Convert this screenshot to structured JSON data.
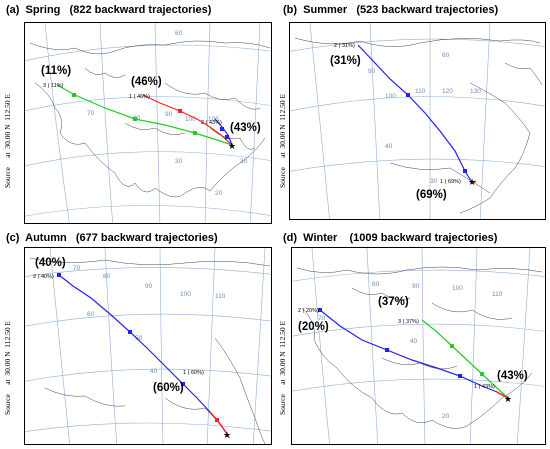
{
  "panels": [
    {
      "id": "a",
      "title": "(a)  Spring   (822 backward trajectories)",
      "side_label": "Source     at  30.00 N  112.50 E",
      "grid_labels": [
        "60",
        "70",
        "80",
        "90",
        "100",
        "105",
        "30",
        "30",
        "20"
      ],
      "trajectories": [
        {
          "label": "3 ( 11%)",
          "percent": "(11%)",
          "color": "#22cc22"
        },
        {
          "label": "1 ( 46%)",
          "percent": "(46%)",
          "color": "#ff2222"
        },
        {
          "label": "2 ( 43%)",
          "percent": "(43%)",
          "color": "#2222ee"
        }
      ]
    },
    {
      "id": "b",
      "title": "(b)  Summer   (523 backward trajectories)",
      "side_label": "Source     at  30.00 N  112.50 E",
      "grid_labels": [
        "60",
        "90",
        "100",
        "110",
        "120",
        "130",
        "40",
        "30"
      ],
      "trajectories": [
        {
          "label": "2 ( 31%)",
          "percent": "(31%)",
          "color": "#2222ee"
        },
        {
          "label": "1 ( 69%)",
          "percent": "(69%)",
          "color": "#ff2222"
        }
      ]
    },
    {
      "id": "c",
      "title": "(c)  Autumn   (677 backward trajectories)",
      "side_label": "Source     at  30.00 N  112.50 E",
      "grid_labels": [
        "70",
        "80",
        "90",
        "100",
        "110",
        "60",
        "50",
        "40"
      ],
      "trajectories": [
        {
          "label": "2 ( 40%)",
          "percent": "(40%)",
          "color": "#2222ee"
        },
        {
          "label": "1 ( 60%)",
          "percent": "(60%)",
          "color": "#ff2222"
        }
      ]
    },
    {
      "id": "d",
      "title": "(d)  Winter    (1009 backward trajectories)",
      "side_label": "Source     at  30.00 N  112.50 E",
      "grid_labels": [
        "70",
        "80",
        "90",
        "100",
        "110",
        "40",
        "20"
      ],
      "trajectories": [
        {
          "label": "2 ( 20%)",
          "percent": "(20%)",
          "color": "#2222ee"
        },
        {
          "label": "3 ( 37%)",
          "percent": "(37%)",
          "color": "#22cc22"
        },
        {
          "label": "1 ( 43%)",
          "percent": "(43%)",
          "color": "#ff2222"
        }
      ]
    }
  ]
}
